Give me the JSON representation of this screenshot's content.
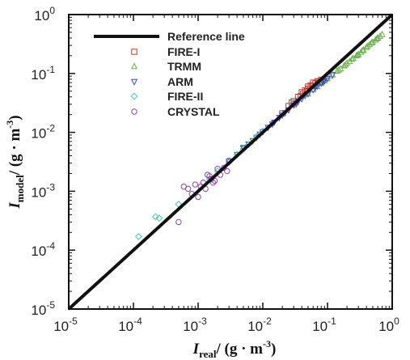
{
  "chart_data": {
    "type": "scatter",
    "xscale": "log",
    "yscale": "log",
    "xlim": [
      1e-05,
      1
    ],
    "ylim": [
      1e-05,
      1
    ],
    "xlabel": {
      "base": "I",
      "sub": "real",
      "rest": "/ (g · m",
      "sup": "-3",
      "close": ")"
    },
    "ylabel": {
      "base": "I",
      "sub": "model",
      "rest": "/ (g · m",
      "sup": "-3",
      "close": ")"
    },
    "xticks": [
      {
        "value": 1e-05,
        "base": "10",
        "exp": "-5"
      },
      {
        "value": 0.0001,
        "base": "10",
        "exp": "-4"
      },
      {
        "value": 0.001,
        "base": "10",
        "exp": "-3"
      },
      {
        "value": 0.01,
        "base": "10",
        "exp": "-2"
      },
      {
        "value": 0.1,
        "base": "10",
        "exp": "-1"
      },
      {
        "value": 1,
        "base": "10",
        "exp": "0"
      }
    ],
    "yticks": [
      {
        "value": 1e-05,
        "base": "10",
        "exp": "-5"
      },
      {
        "value": 0.0001,
        "base": "10",
        "exp": "-4"
      },
      {
        "value": 0.001,
        "base": "10",
        "exp": "-3"
      },
      {
        "value": 0.01,
        "base": "10",
        "exp": "-2"
      },
      {
        "value": 0.1,
        "base": "10",
        "exp": "-1"
      },
      {
        "value": 1,
        "base": "10",
        "exp": "0"
      }
    ],
    "grid": false,
    "legend_position": "top-left",
    "reference_line": {
      "name": "Reference line",
      "color": "#111111",
      "x": [
        1e-05,
        1
      ],
      "y": [
        1e-05,
        1
      ]
    },
    "series": [
      {
        "name": "FIRE-I",
        "marker": "square",
        "color": "#c0392b",
        "x": [
          0.02,
          0.025,
          0.03,
          0.035,
          0.04,
          0.045,
          0.05,
          0.055,
          0.06,
          0.07,
          0.08,
          0.03,
          0.042,
          0.05,
          0.065,
          0.028,
          0.038,
          0.058,
          0.075,
          0.048
        ],
        "y": [
          0.021,
          0.028,
          0.034,
          0.04,
          0.048,
          0.052,
          0.06,
          0.063,
          0.07,
          0.074,
          0.078,
          0.03,
          0.045,
          0.055,
          0.068,
          0.032,
          0.041,
          0.061,
          0.072,
          0.05
        ]
      },
      {
        "name": "TRMM",
        "marker": "triangle-up",
        "color": "#6ab04c",
        "x": [
          0.05,
          0.06,
          0.07,
          0.08,
          0.09,
          0.1,
          0.12,
          0.14,
          0.16,
          0.18,
          0.2,
          0.22,
          0.25,
          0.28,
          0.3,
          0.33,
          0.36,
          0.4,
          0.45,
          0.5,
          0.55,
          0.6,
          0.65,
          0.7,
          0.08,
          0.11,
          0.15,
          0.19,
          0.24,
          0.29,
          0.35,
          0.42,
          0.48,
          0.58
        ],
        "y": [
          0.045,
          0.053,
          0.06,
          0.068,
          0.075,
          0.082,
          0.095,
          0.11,
          0.12,
          0.135,
          0.15,
          0.16,
          0.18,
          0.2,
          0.21,
          0.23,
          0.25,
          0.28,
          0.31,
          0.34,
          0.37,
          0.4,
          0.43,
          0.46,
          0.072,
          0.09,
          0.115,
          0.14,
          0.175,
          0.205,
          0.245,
          0.29,
          0.33,
          0.39
        ]
      },
      {
        "name": "ARM",
        "marker": "triangle-down",
        "color": "#3b4cc0",
        "x": [
          0.003,
          0.004,
          0.005,
          0.006,
          0.007,
          0.008,
          0.01,
          0.012,
          0.015,
          0.018,
          0.02,
          0.025,
          0.03,
          0.035,
          0.04,
          0.05,
          0.06,
          0.07,
          0.08,
          0.09,
          0.1,
          0.12,
          0.005,
          0.009,
          0.014,
          0.022,
          0.033,
          0.045,
          0.065,
          0.085
        ],
        "y": [
          0.0032,
          0.0042,
          0.0053,
          0.0063,
          0.0072,
          0.0082,
          0.0102,
          0.0121,
          0.0148,
          0.0178,
          0.0195,
          0.024,
          0.029,
          0.033,
          0.037,
          0.045,
          0.053,
          0.061,
          0.068,
          0.075,
          0.082,
          0.095,
          0.0055,
          0.0093,
          0.0138,
          0.0215,
          0.031,
          0.042,
          0.058,
          0.072
        ]
      },
      {
        "name": "FIRE-II",
        "marker": "diamond",
        "color": "#48c9b0",
        "x": [
          0.00012,
          0.00022,
          0.00025,
          0.0005,
          0.0015,
          0.002,
          0.003,
          0.004,
          0.005,
          0.006,
          0.008,
          0.01
        ],
        "y": [
          0.00017,
          0.00037,
          0.00035,
          0.0006,
          0.0016,
          0.0022,
          0.0031,
          0.0042,
          0.0052,
          0.0062,
          0.0085,
          0.0105
        ]
      },
      {
        "name": "CRYSTAL",
        "marker": "circle",
        "color": "#8e44ad",
        "x": [
          0.0005,
          0.0007,
          0.0008,
          0.0009,
          0.001,
          0.0011,
          0.0012,
          0.0013,
          0.0015,
          0.0016,
          0.0018,
          0.002,
          0.0022,
          0.0025,
          0.0028,
          0.003,
          0.0006,
          0.0014,
          0.0017
        ],
        "y": [
          0.0003,
          0.0011,
          0.0009,
          0.0013,
          0.0008,
          0.0012,
          0.0014,
          0.0011,
          0.0018,
          0.0016,
          0.0015,
          0.0024,
          0.0019,
          0.0025,
          0.0022,
          0.0033,
          0.0012,
          0.0019,
          0.0014
        ]
      }
    ]
  }
}
